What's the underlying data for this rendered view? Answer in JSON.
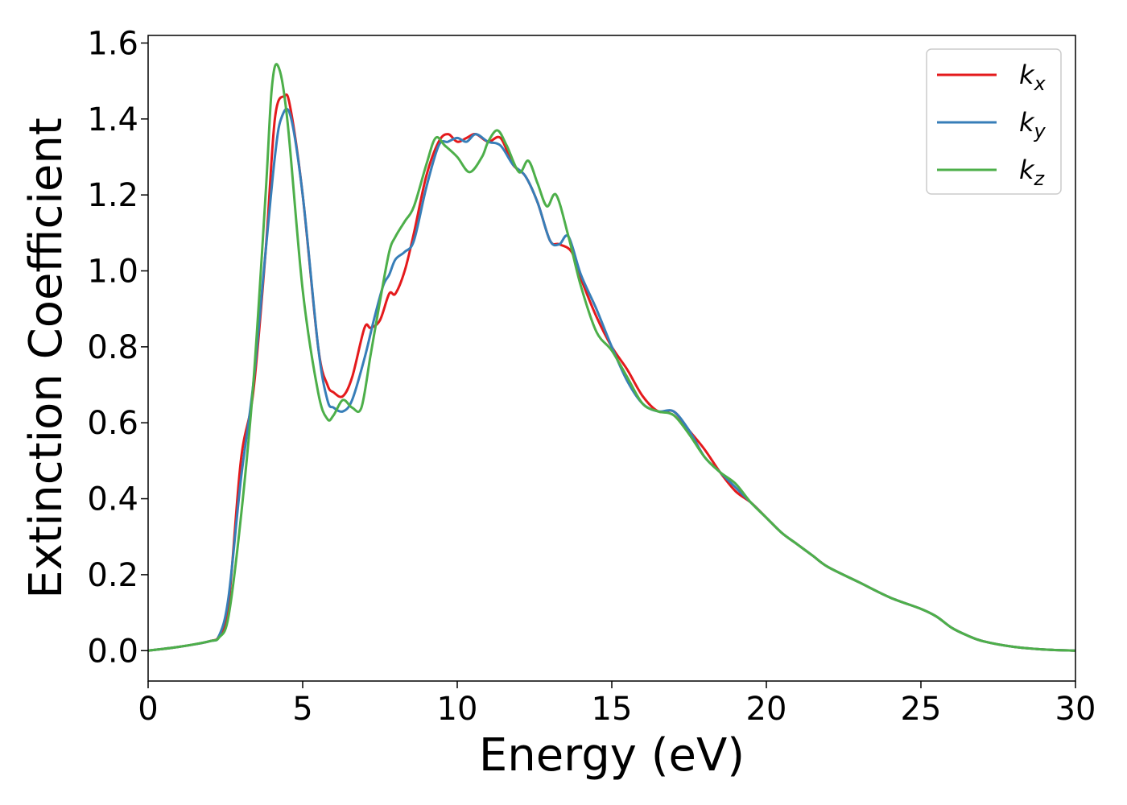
{
  "chart_data": {
    "type": "line",
    "title": "",
    "xlabel": "Energy (eV)",
    "ylabel": "Extinction Coefficient",
    "xlim": [
      0,
      30
    ],
    "ylim": [
      -0.08,
      1.62
    ],
    "xticks": [
      0,
      5,
      10,
      15,
      20,
      25,
      30
    ],
    "xtick_labels": [
      "0",
      "5",
      "10",
      "15",
      "20",
      "25",
      "30"
    ],
    "yticks": [
      0.0,
      0.2,
      0.4,
      0.6,
      0.8,
      1.0,
      1.2,
      1.4,
      1.6
    ],
    "ytick_labels": [
      "0.0",
      "0.2",
      "0.4",
      "0.6",
      "0.8",
      "1.0",
      "1.2",
      "1.4",
      "1.6"
    ],
    "grid": false,
    "legend_position": "top-right",
    "series": [
      {
        "name": "k_x",
        "legend_base": "k",
        "legend_sub": "x",
        "color": "#e41a1c",
        "x": [
          0,
          1,
          2,
          2.3,
          2.6,
          3.0,
          3.4,
          3.8,
          4.1,
          4.4,
          4.6,
          5.0,
          5.5,
          5.8,
          6.0,
          6.3,
          6.6,
          7.0,
          7.2,
          7.5,
          7.8,
          8.0,
          8.3,
          8.6,
          9.0,
          9.4,
          9.7,
          10.0,
          10.3,
          10.6,
          11.0,
          11.4,
          11.8,
          12.2,
          12.6,
          13.0,
          13.3,
          13.7,
          14.0,
          14.5,
          15.0,
          15.5,
          16.0,
          16.5,
          17.0,
          17.5,
          18.0,
          18.5,
          19.0,
          19.5,
          20.0,
          20.5,
          21.0,
          21.5,
          22.0,
          23.0,
          24.0,
          25.0,
          25.5,
          26.0,
          26.5,
          27.0,
          28.0,
          29.0,
          30.0
        ],
        "values": [
          0.0,
          0.01,
          0.025,
          0.04,
          0.12,
          0.5,
          0.68,
          1.05,
          1.4,
          1.46,
          1.43,
          1.2,
          0.8,
          0.7,
          0.68,
          0.67,
          0.72,
          0.85,
          0.85,
          0.87,
          0.94,
          0.94,
          1.0,
          1.1,
          1.25,
          1.34,
          1.36,
          1.34,
          1.35,
          1.36,
          1.34,
          1.35,
          1.28,
          1.25,
          1.18,
          1.08,
          1.07,
          1.05,
          0.98,
          0.88,
          0.8,
          0.74,
          0.67,
          0.63,
          0.63,
          0.58,
          0.53,
          0.47,
          0.42,
          0.39,
          0.35,
          0.31,
          0.28,
          0.25,
          0.22,
          0.18,
          0.14,
          0.11,
          0.09,
          0.06,
          0.04,
          0.025,
          0.01,
          0.003,
          0.0
        ]
      },
      {
        "name": "k_y",
        "legend_base": "k",
        "legend_sub": "y",
        "color": "#377eb8",
        "x": [
          0,
          1,
          2,
          2.3,
          2.6,
          3.0,
          3.4,
          3.8,
          4.1,
          4.3,
          4.6,
          5.0,
          5.5,
          5.8,
          6.0,
          6.3,
          6.6,
          7.0,
          7.3,
          7.6,
          7.8,
          8.0,
          8.3,
          8.6,
          9.0,
          9.4,
          9.7,
          10.0,
          10.3,
          10.6,
          11.0,
          11.4,
          11.8,
          12.2,
          12.6,
          13.0,
          13.3,
          13.6,
          14.0,
          14.5,
          15.0,
          15.5,
          16.0,
          16.5,
          17.0,
          17.5,
          18.0,
          18.5,
          19.0,
          19.5,
          20.0,
          20.5,
          21.0,
          21.5,
          22.0,
          23.0,
          24.0,
          25.0,
          25.5,
          26.0,
          26.5,
          27.0,
          28.0,
          29.0,
          30.0
        ],
        "values": [
          0.0,
          0.01,
          0.025,
          0.04,
          0.14,
          0.45,
          0.7,
          1.05,
          1.3,
          1.4,
          1.41,
          1.2,
          0.8,
          0.66,
          0.64,
          0.63,
          0.66,
          0.77,
          0.87,
          0.96,
          0.99,
          1.03,
          1.05,
          1.08,
          1.22,
          1.33,
          1.34,
          1.35,
          1.34,
          1.36,
          1.34,
          1.33,
          1.28,
          1.25,
          1.18,
          1.08,
          1.07,
          1.09,
          0.99,
          0.9,
          0.8,
          0.71,
          0.65,
          0.63,
          0.63,
          0.58,
          0.51,
          0.47,
          0.43,
          0.39,
          0.35,
          0.31,
          0.28,
          0.25,
          0.22,
          0.18,
          0.14,
          0.11,
          0.09,
          0.06,
          0.04,
          0.025,
          0.01,
          0.003,
          0.0
        ]
      },
      {
        "name": "k_z",
        "legend_base": "k",
        "legend_sub": "z",
        "color": "#4daf4a",
        "x": [
          0,
          1,
          2,
          2.3,
          2.6,
          3.0,
          3.4,
          3.8,
          4.0,
          4.2,
          4.5,
          5.0,
          5.5,
          5.8,
          6.0,
          6.3,
          6.6,
          6.9,
          7.2,
          7.5,
          7.8,
          8.0,
          8.3,
          8.6,
          9.0,
          9.3,
          9.6,
          10.0,
          10.4,
          10.8,
          11.0,
          11.3,
          11.6,
          12.0,
          12.3,
          12.6,
          12.9,
          13.2,
          13.6,
          14.0,
          14.5,
          15.0,
          15.5,
          16.0,
          16.5,
          17.0,
          17.5,
          18.0,
          18.5,
          19.0,
          19.5,
          20.0,
          20.5,
          21.0,
          21.5,
          22.0,
          23.0,
          24.0,
          25.0,
          25.5,
          26.0,
          26.5,
          27.0,
          28.0,
          29.0,
          30.0
        ],
        "values": [
          0.0,
          0.01,
          0.025,
          0.035,
          0.09,
          0.35,
          0.7,
          1.2,
          1.48,
          1.54,
          1.4,
          0.95,
          0.68,
          0.61,
          0.62,
          0.66,
          0.64,
          0.64,
          0.78,
          0.92,
          1.05,
          1.09,
          1.13,
          1.17,
          1.28,
          1.35,
          1.33,
          1.3,
          1.26,
          1.3,
          1.34,
          1.37,
          1.33,
          1.26,
          1.29,
          1.23,
          1.17,
          1.2,
          1.09,
          0.96,
          0.84,
          0.79,
          0.72,
          0.65,
          0.63,
          0.62,
          0.57,
          0.51,
          0.47,
          0.44,
          0.39,
          0.35,
          0.31,
          0.28,
          0.25,
          0.22,
          0.18,
          0.14,
          0.11,
          0.09,
          0.06,
          0.04,
          0.025,
          0.01,
          0.003,
          0.0
        ]
      }
    ]
  }
}
